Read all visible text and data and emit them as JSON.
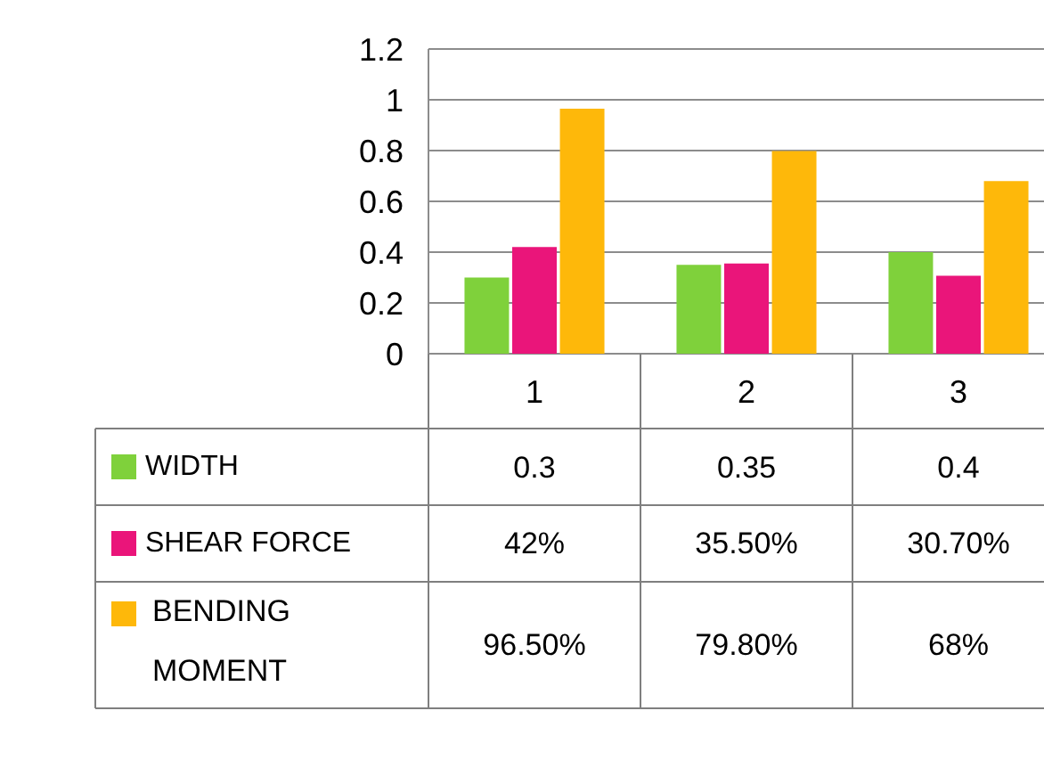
{
  "chart_data": {
    "type": "bar",
    "categories": [
      "1",
      "2",
      "3"
    ],
    "series": [
      {
        "name": "WIDTH",
        "color": "#7fd13b",
        "values": [
          0.3,
          0.35,
          0.4
        ],
        "value_labels": [
          "0.3",
          "0.35",
          "0.4"
        ]
      },
      {
        "name": "SHEAR FORCE",
        "color": "#ea157a",
        "values": [
          0.42,
          0.355,
          0.307
        ],
        "value_labels": [
          "42%",
          "35.50%",
          "30.70%"
        ]
      },
      {
        "name": "BENDING MOMENT",
        "color": "#feb80a",
        "values": [
          0.965,
          0.798,
          0.68
        ],
        "value_labels": [
          "96.50%",
          "79.80%",
          "68%"
        ]
      }
    ],
    "ylim": [
      0,
      1.2
    ],
    "yticks": [
      0,
      0.2,
      0.4,
      0.6,
      0.8,
      1,
      {
        "value": 1.2,
        "label": "1.2"
      }
    ],
    "grid": "y",
    "legend": "bottom"
  }
}
